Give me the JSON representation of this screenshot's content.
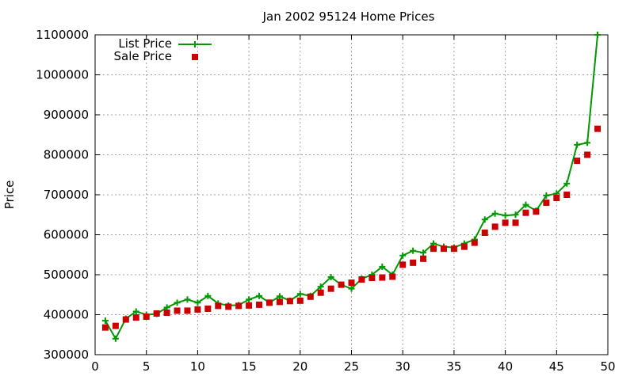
{
  "chart_data": {
    "type": "line",
    "title": "Jan 2002 95124 Home Prices",
    "xlabel": "",
    "ylabel": "Price",
    "xlim": [
      0,
      50
    ],
    "ylim": [
      300000,
      1100000
    ],
    "xticks": [
      0,
      5,
      10,
      15,
      20,
      25,
      30,
      35,
      40,
      45,
      50
    ],
    "yticks": [
      300000,
      400000,
      500000,
      600000,
      700000,
      800000,
      900000,
      1000000,
      1100000
    ],
    "grid": true,
    "legend_position": "top-left",
    "series": [
      {
        "name": "List Price",
        "style": "lines+points",
        "color": "#009900",
        "x": [
          1,
          2,
          3,
          4,
          5,
          6,
          7,
          8,
          9,
          10,
          11,
          12,
          13,
          14,
          15,
          16,
          17,
          18,
          19,
          20,
          21,
          22,
          23,
          24,
          25,
          26,
          27,
          28,
          29,
          30,
          31,
          32,
          33,
          34,
          35,
          36,
          37,
          38,
          39,
          40,
          41,
          42,
          43,
          44,
          45,
          46,
          47,
          48,
          49
        ],
        "values": [
          385000,
          340000,
          390000,
          408000,
          400000,
          402000,
          418000,
          430000,
          438000,
          430000,
          447000,
          428000,
          423000,
          424000,
          438000,
          447000,
          430000,
          446000,
          435000,
          452000,
          447000,
          470000,
          494000,
          475000,
          465000,
          490000,
          500000,
          520000,
          500000,
          548000,
          560000,
          555000,
          578000,
          570000,
          568000,
          578000,
          588000,
          638000,
          653000,
          648000,
          650000,
          675000,
          660000,
          698000,
          703000,
          728000,
          825000,
          830000,
          1100000
        ]
      },
      {
        "name": "Sale Price",
        "style": "points",
        "color": "#cc0000",
        "x": [
          1,
          2,
          3,
          4,
          5,
          6,
          7,
          8,
          9,
          10,
          11,
          12,
          13,
          14,
          15,
          16,
          17,
          18,
          19,
          20,
          21,
          22,
          23,
          24,
          25,
          26,
          27,
          28,
          29,
          30,
          31,
          32,
          33,
          34,
          35,
          36,
          37,
          38,
          39,
          40,
          41,
          42,
          43,
          44,
          45,
          46,
          47,
          48,
          49
        ],
        "values": [
          368000,
          372000,
          388000,
          393000,
          395000,
          403000,
          405000,
          410000,
          410000,
          413000,
          415000,
          422000,
          420000,
          422000,
          423000,
          425000,
          430000,
          432000,
          434000,
          435000,
          445000,
          455000,
          465000,
          475000,
          480000,
          488000,
          492000,
          493000,
          495000,
          525000,
          530000,
          540000,
          565000,
          565000,
          565000,
          570000,
          580000,
          605000,
          620000,
          630000,
          630000,
          655000,
          658000,
          680000,
          692000,
          700000,
          785000,
          800000,
          865000
        ]
      }
    ]
  }
}
